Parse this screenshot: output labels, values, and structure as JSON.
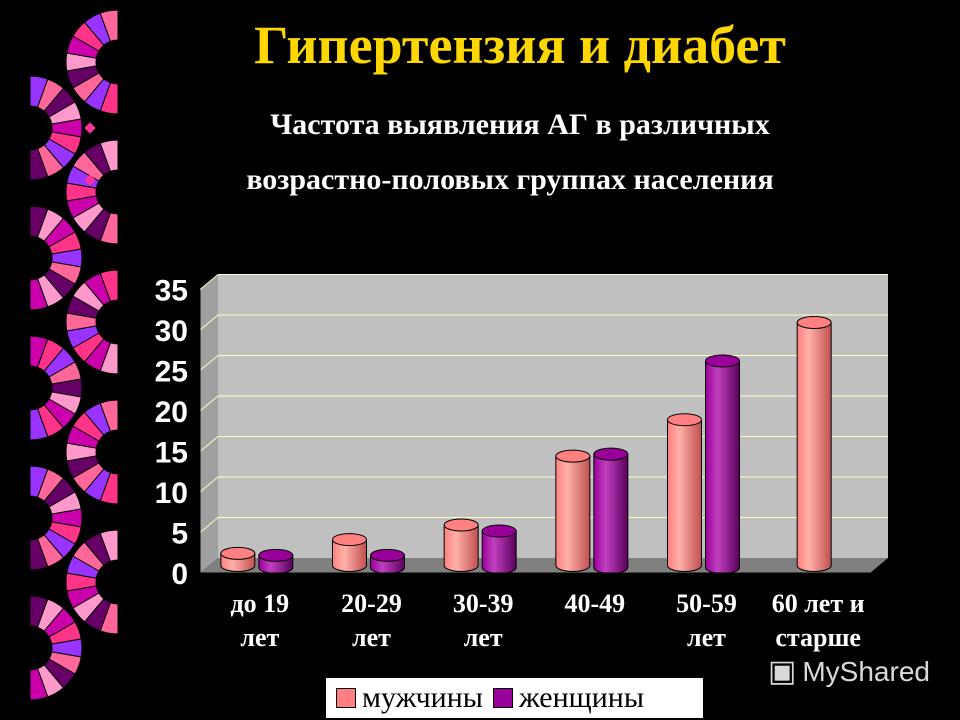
{
  "slide": {
    "title": "Гипертензия и диабет",
    "subtitle_line1": "Частота выявления АГ в различных",
    "subtitle_line2": "возрастно-половых группах населения"
  },
  "chart_data": {
    "type": "bar",
    "categories": [
      [
        "до 19",
        "лет"
      ],
      [
        "20-29",
        "лет"
      ],
      [
        "30-39",
        "лет"
      ],
      [
        "40-49",
        ""
      ],
      [
        "50-59",
        "лет"
      ],
      [
        "60 лет и",
        "старше"
      ]
    ],
    "series": [
      {
        "name": "мужчины",
        "values": [
          1.5,
          3.2,
          5.0,
          13.5,
          18.0,
          30.0
        ],
        "color": "#ff8080"
      },
      {
        "name": "женщины",
        "values": [
          1.5,
          1.5,
          4.5,
          14.0,
          25.5,
          null
        ],
        "color": "#990099"
      }
    ],
    "ylim": [
      0,
      35
    ],
    "yticks": [
      "0",
      "5",
      "10",
      "15",
      "20",
      "25",
      "30",
      "35"
    ],
    "grid": true,
    "legend_position": "bottom"
  },
  "watermark": "MyShared",
  "colors": {
    "title": "#ffd700",
    "plot_wall": "#c0c0c0",
    "floor": "#808080",
    "grid": "#ffffc0"
  }
}
